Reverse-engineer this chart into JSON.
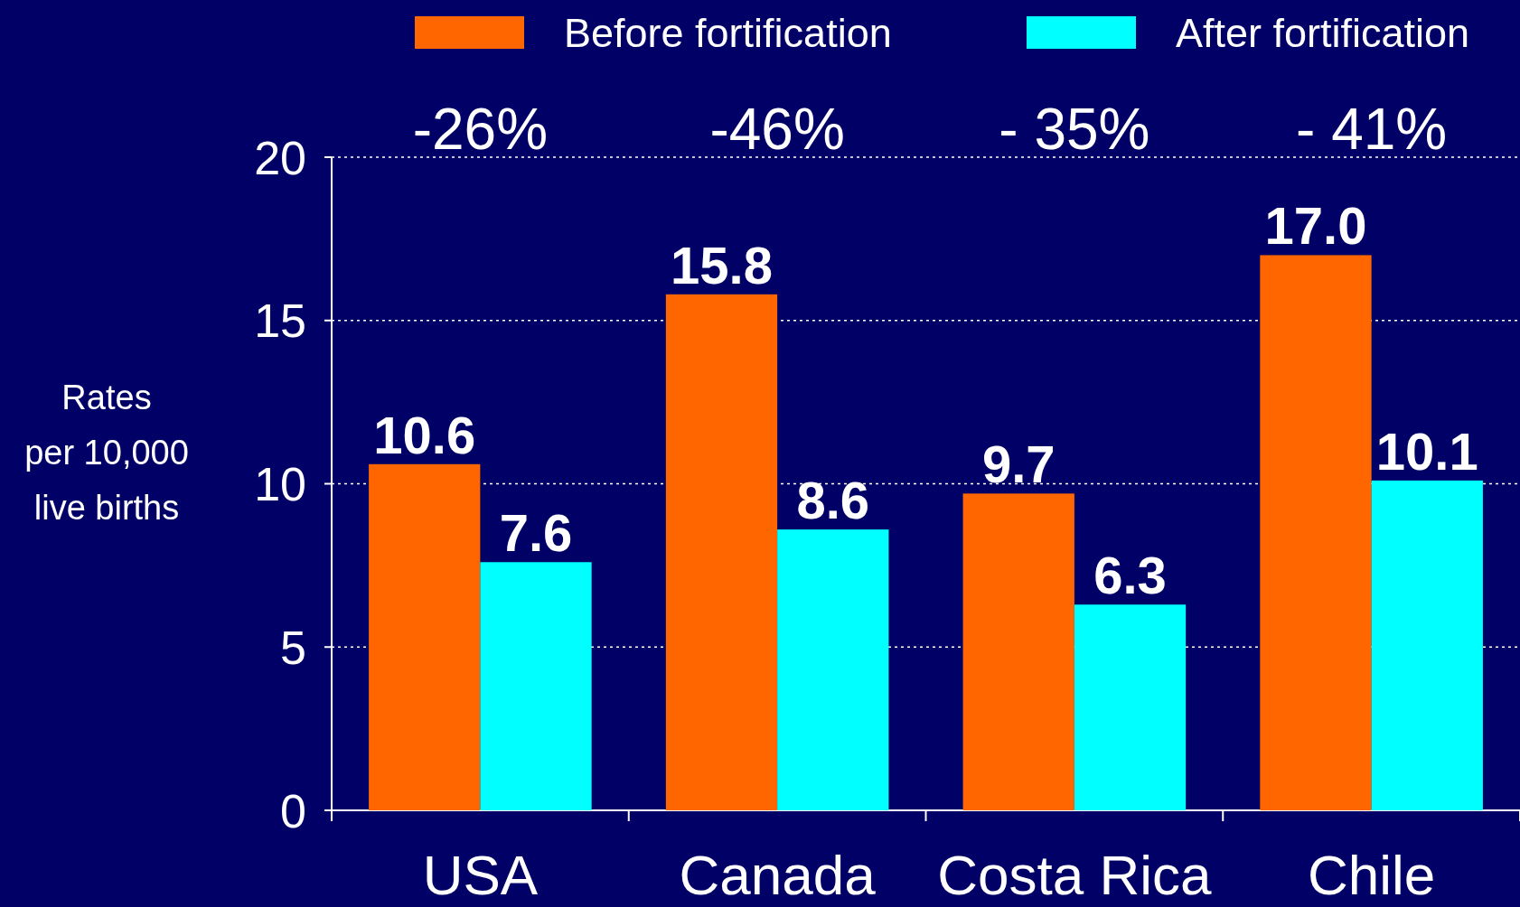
{
  "chart_data": {
    "type": "bar",
    "ylabel": "Rates\nper 10,000\nlive births",
    "categories": [
      "USA",
      "Canada",
      "Costa Rica",
      "Chile"
    ],
    "series": [
      {
        "name": "Before fortification",
        "color": "#ff6600",
        "values": [
          10.6,
          15.8,
          9.7,
          17.0
        ]
      },
      {
        "name": "After fortification",
        "color": "#00ffff",
        "values": [
          7.6,
          8.6,
          6.3,
          10.1
        ]
      }
    ],
    "value_labels": [
      [
        "10.6",
        "15.8",
        "9.7",
        "17.0"
      ],
      [
        "7.6",
        "8.6",
        "6.3",
        "10.1"
      ]
    ],
    "annotations": [
      "-26%",
      "-46%",
      "- 35%",
      "- 41%"
    ],
    "ylim": [
      0,
      20
    ],
    "yticks": [
      0,
      5,
      10,
      15,
      20
    ],
    "grid": "y",
    "legend": "top"
  }
}
